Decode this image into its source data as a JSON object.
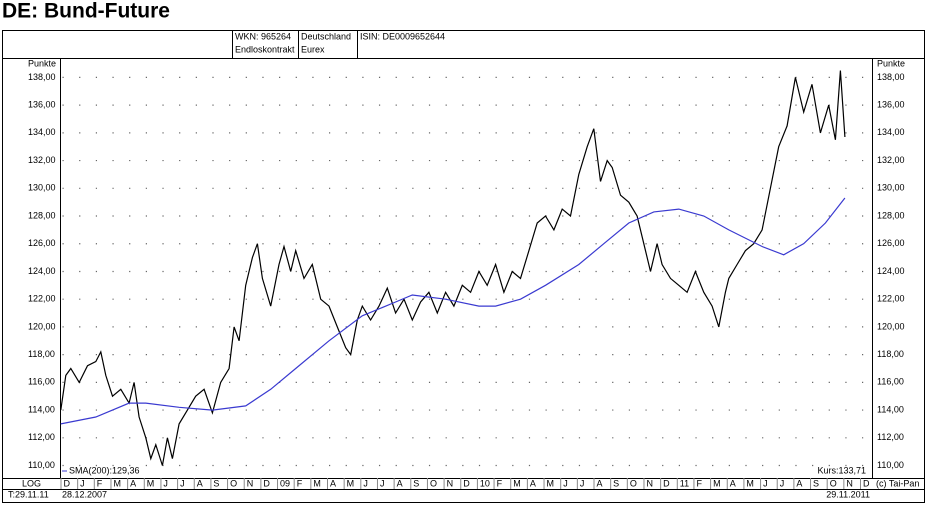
{
  "header": {
    "wkn": "WKN: 965264",
    "contract": "Endloskontrakt",
    "country": "Deutschland",
    "exchange": "Eurex",
    "isin": "ISIN: DE0009652644"
  },
  "chart_data": {
    "type": "line",
    "title": "DE: Bund-Future",
    "y_label": "Punkte",
    "scale_label": "LOG",
    "date_label": "T:29.11.11",
    "start_date": "28.12.2007",
    "end_date": "29.11.2011",
    "source": "(c) Tai-Pan",
    "xlim": [
      0.85,
      49.6
    ],
    "ylim": [
      109.1,
      139.4
    ],
    "grid": true,
    "xticks": [
      {
        "value": 1,
        "label": "D"
      },
      {
        "value": 2,
        "label": "J"
      },
      {
        "value": 3,
        "label": "F"
      },
      {
        "value": 4,
        "label": "M"
      },
      {
        "value": 5,
        "label": "A"
      },
      {
        "value": 6,
        "label": "M"
      },
      {
        "value": 7,
        "label": "J"
      },
      {
        "value": 8,
        "label": "J"
      },
      {
        "value": 9,
        "label": "A"
      },
      {
        "value": 10,
        "label": "S"
      },
      {
        "value": 11,
        "label": "O"
      },
      {
        "value": 12,
        "label": "N"
      },
      {
        "value": 13,
        "label": "D"
      },
      {
        "value": 14,
        "label": "09"
      },
      {
        "value": 15,
        "label": "F"
      },
      {
        "value": 16,
        "label": "M"
      },
      {
        "value": 17,
        "label": "A"
      },
      {
        "value": 18,
        "label": "M"
      },
      {
        "value": 19,
        "label": "J"
      },
      {
        "value": 20,
        "label": "J"
      },
      {
        "value": 21,
        "label": "A"
      },
      {
        "value": 22,
        "label": "S"
      },
      {
        "value": 23,
        "label": "O"
      },
      {
        "value": 24,
        "label": "N"
      },
      {
        "value": 25,
        "label": "D"
      },
      {
        "value": 26,
        "label": "10"
      },
      {
        "value": 27,
        "label": "F"
      },
      {
        "value": 28,
        "label": "M"
      },
      {
        "value": 29,
        "label": "A"
      },
      {
        "value": 30,
        "label": "M"
      },
      {
        "value": 31,
        "label": "J"
      },
      {
        "value": 32,
        "label": "J"
      },
      {
        "value": 33,
        "label": "A"
      },
      {
        "value": 34,
        "label": "S"
      },
      {
        "value": 35,
        "label": "O"
      },
      {
        "value": 36,
        "label": "N"
      },
      {
        "value": 37,
        "label": "D"
      },
      {
        "value": 38,
        "label": "11"
      },
      {
        "value": 39,
        "label": "F"
      },
      {
        "value": 40,
        "label": "M"
      },
      {
        "value": 41,
        "label": "A"
      },
      {
        "value": 42,
        "label": "M"
      },
      {
        "value": 43,
        "label": "J"
      },
      {
        "value": 44,
        "label": "J"
      },
      {
        "value": 45,
        "label": "A"
      },
      {
        "value": 46,
        "label": "S"
      },
      {
        "value": 47,
        "label": "O"
      },
      {
        "value": 48,
        "label": "N"
      },
      {
        "value": 49,
        "label": "D"
      }
    ],
    "yticks": [
      {
        "value": 110,
        "label": "110,00"
      },
      {
        "value": 112,
        "label": "112,00"
      },
      {
        "value": 114,
        "label": "114,00"
      },
      {
        "value": 116,
        "label": "116,00"
      },
      {
        "value": 118,
        "label": "118,00"
      },
      {
        "value": 120,
        "label": "120,00"
      },
      {
        "value": 122,
        "label": "122,00"
      },
      {
        "value": 124,
        "label": "124,00"
      },
      {
        "value": 126,
        "label": "126,00"
      },
      {
        "value": 128,
        "label": "128,00"
      },
      {
        "value": 130,
        "label": "130,00"
      },
      {
        "value": 132,
        "label": "132,00"
      },
      {
        "value": 134,
        "label": "134,00"
      },
      {
        "value": 136,
        "label": "136,00"
      },
      {
        "value": 138,
        "label": "138,00"
      }
    ],
    "series": [
      {
        "name": "Kurs:133,71",
        "color": "#000000",
        "x": [
          0.9,
          1.2,
          1.5,
          2,
          2.5,
          3,
          3.3,
          3.6,
          4,
          4.5,
          5,
          5.3,
          5.6,
          6,
          6.3,
          6.6,
          7,
          7.3,
          7.6,
          8,
          8.5,
          9,
          9.5,
          10,
          10.5,
          11,
          11.3,
          11.6,
          12,
          12.4,
          12.7,
          13,
          13.5,
          14,
          14.3,
          14.7,
          15,
          15.5,
          16,
          16.5,
          17,
          17.5,
          18,
          18.3,
          18.7,
          19,
          19.5,
          20,
          20.5,
          21,
          21.5,
          22,
          22.5,
          23,
          23.5,
          24,
          24.5,
          25,
          25.5,
          26,
          26.5,
          27,
          27.5,
          28,
          28.5,
          29,
          29.5,
          30,
          30.5,
          31,
          31.5,
          32,
          32.5,
          32.9,
          33.3,
          33.7,
          34,
          34.5,
          35,
          35.5,
          36,
          36.3,
          36.7,
          37,
          37.5,
          38,
          38.5,
          39,
          39.5,
          40,
          40.4,
          40.8,
          41,
          41.5,
          42,
          42.5,
          43,
          43.5,
          44,
          44.5,
          45,
          45.5,
          46,
          46.5,
          47,
          47.4,
          47.7,
          47.97
        ],
        "values": [
          114,
          116.5,
          117,
          116,
          117.2,
          117.5,
          118.2,
          116.5,
          115,
          115.5,
          114.5,
          116,
          113.5,
          112,
          110.5,
          111.5,
          110,
          112,
          110.5,
          113,
          114,
          115,
          115.5,
          113.8,
          116,
          117,
          120,
          119,
          123,
          125,
          126,
          123.5,
          121.5,
          124.5,
          125.8,
          124,
          125.5,
          123.5,
          124.5,
          122,
          121.5,
          120,
          118.5,
          118,
          120.5,
          121.5,
          120.5,
          121.5,
          122.8,
          121,
          122,
          120.5,
          121.8,
          122.5,
          121,
          122.5,
          121.5,
          123,
          122.5,
          124,
          123,
          124.5,
          122.5,
          124,
          123.5,
          125.5,
          127.5,
          128,
          127,
          128.5,
          128,
          131,
          133,
          134.3,
          130.5,
          132,
          131.5,
          129.5,
          129,
          128,
          125.5,
          124,
          126,
          124.5,
          123.5,
          123,
          122.5,
          124,
          122.5,
          121.5,
          120,
          122.5,
          123.5,
          124.5,
          125.5,
          126,
          127,
          130,
          133,
          134.5,
          138,
          135.5,
          137.5,
          134,
          136,
          133.5,
          138.5,
          133.7
        ]
      },
      {
        "name": "SMA(200):129,36",
        "color": "#3a3ad0",
        "x": [
          0.9,
          3,
          5,
          6,
          8,
          10,
          12,
          13.5,
          15,
          17,
          19,
          21,
          22,
          24,
          26,
          27,
          28.5,
          30,
          32,
          33.5,
          35,
          36.5,
          38,
          39.5,
          41,
          43,
          44.3,
          45.5,
          46.8,
          47.97
        ],
        "values": [
          113,
          113.5,
          114.5,
          114.5,
          114.2,
          114,
          114.3,
          115.5,
          117,
          119,
          120.8,
          121.8,
          122.3,
          122,
          121.5,
          121.5,
          122,
          123,
          124.5,
          126,
          127.5,
          128.3,
          128.5,
          128,
          127,
          125.8,
          125.2,
          126,
          127.5,
          129.3
        ]
      }
    ]
  }
}
